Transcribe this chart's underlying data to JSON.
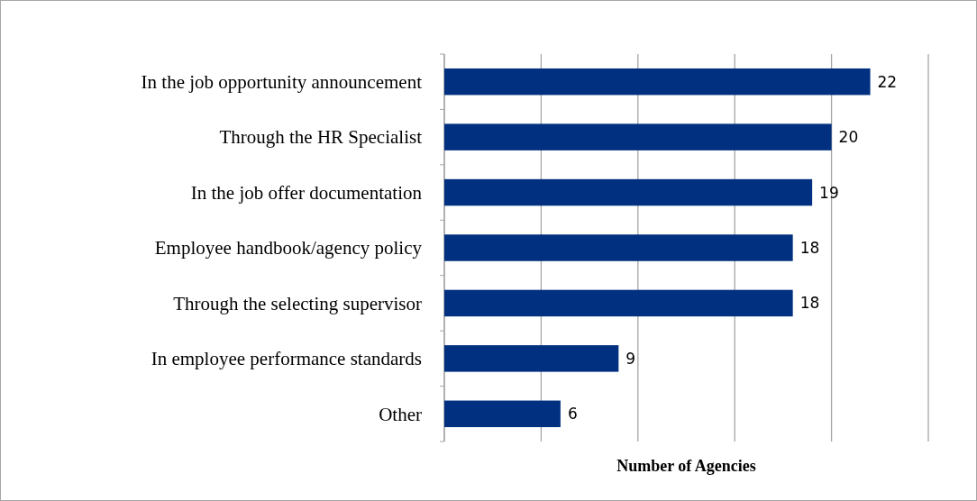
{
  "chart_data": {
    "type": "bar",
    "orientation": "horizontal",
    "xlabel": "Number of Agencies",
    "categories": [
      "In the job opportunity announcement",
      "Through the HR Specialist",
      "In the job offer documentation",
      "Employee handbook/agency policy",
      "Through the selecting supervisor",
      "In employee performance standards",
      "Other"
    ],
    "values": [
      22,
      20,
      19,
      18,
      18,
      9,
      6
    ],
    "color": "#00307f",
    "data_labels": true,
    "xlim": [
      0,
      25
    ],
    "xticks": [
      {
        "value": 0,
        "label": null
      },
      {
        "value": 5,
        "label": null
      },
      {
        "value": 10,
        "label": null
      },
      {
        "value": 15,
        "label": null
      },
      {
        "value": 20,
        "label": null
      },
      {
        "value": 25,
        "label": null
      }
    ],
    "grid": "x",
    "tick_labels": "y"
  }
}
